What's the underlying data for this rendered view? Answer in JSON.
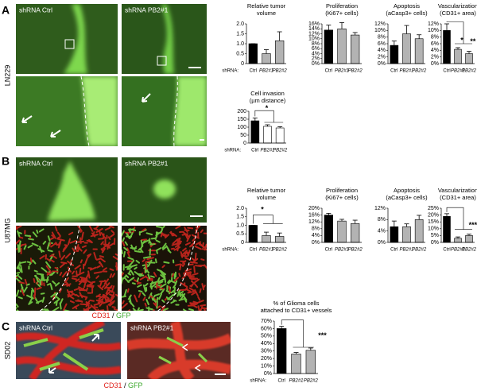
{
  "figure": {
    "panels": [
      {
        "letter": "A",
        "cell_line": "LN229",
        "image_labels": [
          "shRNA Ctrl",
          "shRNA PB2#1"
        ]
      },
      {
        "letter": "B",
        "cell_line": "U87MG",
        "image_labels": [
          "shRNA Ctrl",
          "shRNA PB2#1"
        ],
        "stain": [
          "CD31",
          "/",
          "GFP"
        ]
      },
      {
        "letter": "C",
        "cell_line": "SD02",
        "image_labels": [
          "shRNA Ctrl",
          "shRNA PB2#1"
        ],
        "stain": [
          "CD31",
          "/",
          "GFP"
        ]
      }
    ]
  },
  "chart_data": [
    {
      "type": "bar",
      "title": [
        "Relative tumor",
        "volume"
      ],
      "xlabel": "shRNA:",
      "categories": [
        "Ctrl",
        "PB2#1",
        "PB2#2"
      ],
      "values": [
        1.0,
        0.5,
        1.15
      ],
      "errors": [
        0,
        0.2,
        0.45
      ],
      "colors": [
        "#000000",
        "#b3b3b3",
        "#b3b3b3"
      ],
      "ylim": [
        0,
        2
      ],
      "yticks": [
        0,
        0.5,
        {
          "value": 1,
          "label": "1.0"
        },
        1.5,
        {
          "value": 2,
          "label": "2.0"
        }
      ]
    },
    {
      "type": "bar",
      "title": [
        "Proliferation",
        "(Ki67+ cells)"
      ],
      "categories": [
        "Ctrl",
        "PB2#1",
        "PB2#2"
      ],
      "values": [
        13.5,
        14,
        11.5
      ],
      "errors": [
        2,
        2.5,
        1
      ],
      "colors": [
        "#000000",
        "#b3b3b3",
        "#b3b3b3"
      ],
      "ylim": [
        0,
        16
      ],
      "yticks": [
        {
          "value": 0,
          "label": "0%"
        },
        {
          "value": 2,
          "label": "2%"
        },
        {
          "value": 4,
          "label": "4%"
        },
        {
          "value": 6,
          "label": "6%"
        },
        {
          "value": 8,
          "label": "8%"
        },
        {
          "value": 10,
          "label": "10%"
        },
        {
          "value": 12,
          "label": "12%"
        },
        {
          "value": 14,
          "label": "14%"
        },
        {
          "value": 16,
          "label": "16%"
        }
      ]
    },
    {
      "type": "bar",
      "title": [
        "Apoptosis",
        "(aCasp3+ cells)"
      ],
      "categories": [
        "Ctrl",
        "PB2#1",
        "PB2#2"
      ],
      "values": [
        5.5,
        9,
        7.5
      ],
      "errors": [
        1.3,
        2.5,
        1.2
      ],
      "colors": [
        "#000000",
        "#b3b3b3",
        "#b3b3b3"
      ],
      "ylim": [
        0,
        12
      ],
      "yticks": [
        {
          "value": 0,
          "label": "0%"
        },
        {
          "value": 2,
          "label": "2%"
        },
        {
          "value": 4,
          "label": "4%"
        },
        {
          "value": 6,
          "label": "6%"
        },
        {
          "value": 8,
          "label": "8%"
        },
        {
          "value": 10,
          "label": "10%"
        },
        {
          "value": 12,
          "label": "12%"
        }
      ]
    },
    {
      "type": "bar",
      "title": [
        "Vascularization",
        "(CD31+ area)"
      ],
      "categories": [
        "Ctrl",
        "PB2#1",
        "PB2#2"
      ],
      "values": [
        10,
        4.3,
        3
      ],
      "errors": [
        2,
        0.5,
        0.7
      ],
      "colors": [
        "#000000",
        "#b3b3b3",
        "#b3b3b3"
      ],
      "ylim": [
        0,
        12
      ],
      "yticks": [
        {
          "value": 0,
          "label": "0%"
        },
        {
          "value": 2,
          "label": "2%"
        },
        {
          "value": 4,
          "label": "4%"
        },
        {
          "value": 6,
          "label": "6%"
        },
        {
          "value": 8,
          "label": "8%"
        },
        {
          "value": 10,
          "label": "10%"
        },
        {
          "value": 12,
          "label": "12%"
        }
      ],
      "annotations": [
        "*",
        "**"
      ]
    },
    {
      "type": "bar",
      "title": [
        "Cell invasion",
        "(µm distance)"
      ],
      "xlabel": "shRNA:",
      "categories": [
        "Ctrl",
        "PB2#1",
        "PB2#2"
      ],
      "values": [
        140,
        105,
        95
      ],
      "errors": [
        18,
        10,
        8
      ],
      "colors": [
        "#000000",
        "#ffffff",
        "#ffffff"
      ],
      "ylim": [
        0,
        200
      ],
      "yticks": [
        0,
        50,
        100,
        150,
        200
      ],
      "annotations": [
        "*"
      ]
    },
    {
      "type": "bar",
      "title": [
        "Relative tumor",
        "volume"
      ],
      "xlabel": "shRNA:",
      "categories": [
        "Ctrl",
        "PB2#1",
        "PB2#2"
      ],
      "values": [
        1.0,
        0.4,
        0.35
      ],
      "errors": [
        0,
        0.2,
        0.2
      ],
      "colors": [
        "#000000",
        "#b3b3b3",
        "#b3b3b3"
      ],
      "ylim": [
        0,
        2
      ],
      "yticks": [
        0,
        0.5,
        {
          "value": 1,
          "label": "1.0"
        },
        1.5,
        {
          "value": 2,
          "label": "2.0"
        }
      ],
      "annotations": [
        "*"
      ]
    },
    {
      "type": "bar",
      "title": [
        "Proliferation",
        "(Ki67+ cells)"
      ],
      "categories": [
        "Ctrl",
        "PB2#1",
        "PB2#2"
      ],
      "values": [
        16,
        12.5,
        11
      ],
      "errors": [
        1,
        1,
        2
      ],
      "colors": [
        "#000000",
        "#b3b3b3",
        "#b3b3b3"
      ],
      "ylim": [
        0,
        20
      ],
      "yticks": [
        {
          "value": 0,
          "label": "0%"
        },
        {
          "value": 4,
          "label": "4%"
        },
        {
          "value": 8,
          "label": "8%"
        },
        {
          "value": 12,
          "label": "12%"
        },
        {
          "value": 16,
          "label": "16%"
        },
        {
          "value": 20,
          "label": "20%"
        }
      ]
    },
    {
      "type": "bar",
      "title": [
        "Apoptosis",
        "(aCasp3+ cells)"
      ],
      "categories": [
        "Ctrl",
        "PB2#1",
        "PB2#2"
      ],
      "values": [
        5.5,
        5.5,
        8
      ],
      "errors": [
        2,
        1,
        1.5
      ],
      "colors": [
        "#000000",
        "#b3b3b3",
        "#b3b3b3"
      ],
      "ylim": [
        0,
        12
      ],
      "yticks": [
        {
          "value": 0,
          "label": "0%"
        },
        {
          "value": 4,
          "label": "4%"
        },
        {
          "value": 8,
          "label": "8%"
        },
        {
          "value": 12,
          "label": "12%"
        }
      ]
    },
    {
      "type": "bar",
      "title": [
        "Vascularization",
        "(CD31+ area)"
      ],
      "categories": [
        "Ctrl",
        "PB2#1",
        "PB2#2"
      ],
      "values": [
        19,
        3,
        5
      ],
      "errors": [
        2,
        1,
        1
      ],
      "colors": [
        "#000000",
        "#b3b3b3",
        "#b3b3b3"
      ],
      "ylim": [
        0,
        25
      ],
      "yticks": [
        {
          "value": 0,
          "label": "0%"
        },
        {
          "value": 5,
          "label": "5%"
        },
        {
          "value": 10,
          "label": "10%"
        },
        {
          "value": 15,
          "label": "15%"
        },
        {
          "value": 20,
          "label": "20%"
        },
        {
          "value": 25,
          "label": "25%"
        }
      ],
      "annotations": [
        "***"
      ]
    },
    {
      "type": "bar",
      "title": [
        "% of Glioma cells",
        "attached to CD31+ vessels"
      ],
      "xlabel": "shRNA:",
      "categories": [
        "Ctrl",
        "PB2#1",
        "PB2#2"
      ],
      "values": [
        60,
        26,
        31
      ],
      "errors": [
        3,
        2,
        3
      ],
      "colors": [
        "#000000",
        "#b3b3b3",
        "#b3b3b3"
      ],
      "ylim": [
        0,
        70
      ],
      "yticks": [
        {
          "value": 0,
          "label": "0%"
        },
        {
          "value": 10,
          "label": "10%"
        },
        {
          "value": 20,
          "label": "20%"
        },
        {
          "value": 30,
          "label": "30%"
        },
        {
          "value": 40,
          "label": "40%"
        },
        {
          "value": 50,
          "label": "50%"
        },
        {
          "value": 60,
          "label": "60%"
        },
        {
          "value": 70,
          "label": "70%"
        }
      ],
      "annotations": [
        "***"
      ]
    }
  ]
}
